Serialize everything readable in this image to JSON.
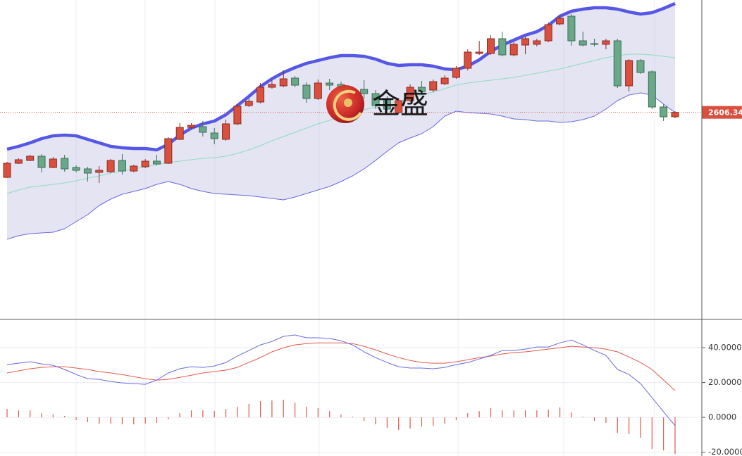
{
  "chart_data": [
    {
      "type": "candlestick",
      "ylim": [
        2314,
        2766
      ],
      "up_color": "#d9503f",
      "down_color": "#6aa88a",
      "last_price": 2606.34,
      "open": [
        2514,
        2534,
        2538,
        2544,
        2528,
        2541,
        2528,
        2526,
        2521,
        2522,
        2538,
        2523,
        2529,
        2537,
        2534,
        2568,
        2585,
        2586,
        2577,
        2568,
        2590,
        2616,
        2621,
        2642,
        2644,
        2655,
        2645,
        2626,
        2648,
        2646,
        2626,
        2639,
        2633,
        2626,
        2606,
        2623,
        2642,
        2638,
        2647,
        2656,
        2669,
        2690,
        2690,
        2711,
        2688,
        2702,
        2703,
        2708,
        2732,
        2743,
        2708,
        2704,
        2703,
        2708,
        2644,
        2680,
        2664,
        2614,
        2600
      ],
      "close": [
        2534,
        2539,
        2544,
        2528,
        2540,
        2526,
        2524,
        2520,
        2524,
        2538,
        2523,
        2530,
        2537,
        2533,
        2569,
        2585,
        2588,
        2578,
        2569,
        2590,
        2615,
        2622,
        2642,
        2646,
        2654,
        2645,
        2626,
        2648,
        2645,
        2638,
        2638,
        2633,
        2616,
        2611,
        2623,
        2642,
        2636,
        2650,
        2655,
        2669,
        2692,
        2692,
        2711,
        2688,
        2703,
        2711,
        2708,
        2731,
        2740,
        2708,
        2702,
        2703,
        2708,
        2644,
        2680,
        2663,
        2614,
        2600,
        2606.34
      ],
      "high": [
        2536,
        2541,
        2546,
        2547,
        2543,
        2546,
        2531,
        2529,
        2530,
        2540,
        2547,
        2532,
        2540,
        2546,
        2571,
        2591,
        2591,
        2594,
        2584,
        2596,
        2618,
        2626,
        2648,
        2652,
        2666,
        2658,
        2649,
        2653,
        2654,
        2650,
        2642,
        2652,
        2638,
        2630,
        2626,
        2646,
        2651,
        2653,
        2659,
        2672,
        2696,
        2708,
        2716,
        2721,
        2706,
        2714,
        2711,
        2734,
        2744,
        2746,
        2721,
        2711,
        2711,
        2711,
        2682,
        2682,
        2666,
        2618,
        2608
      ],
      "low": [
        2513,
        2533,
        2537,
        2521,
        2527,
        2522,
        2521,
        2508,
        2506,
        2520,
        2518,
        2521,
        2527,
        2531,
        2533,
        2567,
        2583,
        2572,
        2561,
        2566,
        2588,
        2614,
        2619,
        2640,
        2642,
        2642,
        2620,
        2624,
        2638,
        2634,
        2622,
        2626,
        2611,
        2608,
        2604,
        2621,
        2632,
        2635,
        2645,
        2654,
        2666,
        2688,
        2688,
        2686,
        2686,
        2689,
        2700,
        2706,
        2730,
        2701,
        2700,
        2700,
        2696,
        2641,
        2636,
        2661,
        2611,
        2594,
        2598
      ],
      "upper": {
        "color": "#5757e6",
        "values": [
          2554,
          2558,
          2563,
          2569,
          2573,
          2574,
          2573,
          2568,
          2563,
          2558,
          2556,
          2555,
          2555,
          2553,
          2561,
          2574,
          2584,
          2590,
          2594,
          2603,
          2616,
          2629,
          2643,
          2654,
          2663,
          2670,
          2676,
          2680,
          2684,
          2687,
          2687,
          2686,
          2682,
          2676,
          2673,
          2674,
          2674,
          2672,
          2668,
          2667,
          2672,
          2681,
          2693,
          2702,
          2709,
          2716,
          2721,
          2730,
          2743,
          2750,
          2753,
          2755,
          2755,
          2753,
          2749,
          2746,
          2748,
          2754,
          2761
        ]
      },
      "middle": {
        "color": "#8fdcc0",
        "values": [
          2491,
          2496,
          2500,
          2502,
          2504,
          2506,
          2509,
          2513,
          2516,
          2520,
          2523,
          2526,
          2529,
          2532,
          2535,
          2537,
          2539,
          2541,
          2542,
          2544,
          2548,
          2553,
          2559,
          2566,
          2572,
          2578,
          2584,
          2590,
          2595,
          2601,
          2606,
          2610,
          2614,
          2618,
          2622,
          2626,
          2631,
          2635,
          2640,
          2645,
          2648,
          2650,
          2652,
          2654,
          2656,
          2659,
          2662,
          2665,
          2668,
          2672,
          2676,
          2680,
          2684,
          2687,
          2689,
          2689,
          2688,
          2686,
          2684
        ]
      },
      "lower": {
        "color": "#6a6ae0",
        "values": [
          2426,
          2431,
          2434,
          2435,
          2436,
          2441,
          2451,
          2461,
          2474,
          2483,
          2490,
          2494,
          2498,
          2504,
          2508,
          2504,
          2498,
          2494,
          2491,
          2490,
          2489,
          2488,
          2486,
          2484,
          2482,
          2486,
          2491,
          2496,
          2501,
          2508,
          2516,
          2526,
          2538,
          2551,
          2563,
          2570,
          2576,
          2586,
          2601,
          2608,
          2606,
          2605,
          2604,
          2601,
          2597,
          2596,
          2594,
          2594,
          2592,
          2593,
          2596,
          2601,
          2611,
          2623,
          2631,
          2634,
          2631,
          2618,
          2606
        ]
      }
    },
    {
      "type": "macd",
      "ylim": [
        -22.2,
        55.8
      ],
      "yticks": [
        {
          "value": 40,
          "label": "40.0000"
        },
        {
          "value": 20,
          "label": "20.0000"
        },
        {
          "value": 0,
          "label": "0.0000"
        },
        {
          "value": -20,
          "label": "-20.0000"
        }
      ],
      "dif": {
        "color": "#6a6ae0",
        "values": [
          30.3,
          31.1,
          31.9,
          30.7,
          29.9,
          27.5,
          24.6,
          22.2,
          21.8,
          20.6,
          19.8,
          19.4,
          19.0,
          21.4,
          25.5,
          27.9,
          29.1,
          28.7,
          29.5,
          31.5,
          35.2,
          38.4,
          41.6,
          43.6,
          46.5,
          47.3,
          45.7,
          45.7,
          45.3,
          44.0,
          41.6,
          37.6,
          34.3,
          31.5,
          29.1,
          28.3,
          28.3,
          27.9,
          28.7,
          30.3,
          31.5,
          33.5,
          35.6,
          38.4,
          38.4,
          39.2,
          40.4,
          40.4,
          42.8,
          44.4,
          41.6,
          38.4,
          35.6,
          27.5,
          24.6,
          19.4,
          11.3,
          3.2,
          -4.8
        ]
      },
      "dea": {
        "color": "#e05a4a",
        "values": [
          25.5,
          26.7,
          27.9,
          28.7,
          29.1,
          29.1,
          28.3,
          27.5,
          26.3,
          25.5,
          24.6,
          23.4,
          22.2,
          21.4,
          21.8,
          23.0,
          24.2,
          25.5,
          26.3,
          27.1,
          28.7,
          31.5,
          34.3,
          37.6,
          40.0,
          41.6,
          42.4,
          42.8,
          42.8,
          42.8,
          42.4,
          40.8,
          38.8,
          36.4,
          34.3,
          32.7,
          31.5,
          31.1,
          31.1,
          31.9,
          33.1,
          34.3,
          35.2,
          36.4,
          37.2,
          37.6,
          38.4,
          39.2,
          40.0,
          40.8,
          40.4,
          40.0,
          39.2,
          37.6,
          34.7,
          31.5,
          27.5,
          21.4,
          15.4
        ]
      },
      "histogram": {
        "color": "#e05a4a",
        "values": [
          4.8,
          4,
          4,
          2.4,
          1.6,
          0.8,
          -1.6,
          -2.8,
          -3.6,
          -3.6,
          -4,
          -4,
          -3.6,
          -3.2,
          -1.2,
          2.4,
          4,
          4,
          3.6,
          4.8,
          6.1,
          7.7,
          9.3,
          9.7,
          10.1,
          8.5,
          6.1,
          5.3,
          3.6,
          1.6,
          0.4,
          -2,
          -4,
          -6.1,
          -7.3,
          -6.5,
          -5.3,
          -4.8,
          -3.6,
          -1.6,
          2.4,
          3.6,
          5.3,
          4,
          4,
          4,
          4,
          4.4,
          5.7,
          2.8,
          0.4,
          -2,
          -3.2,
          -8.9,
          -9.7,
          -11.7,
          -18.2,
          -19,
          -21
        ]
      }
    }
  ],
  "watermark": "金盛"
}
